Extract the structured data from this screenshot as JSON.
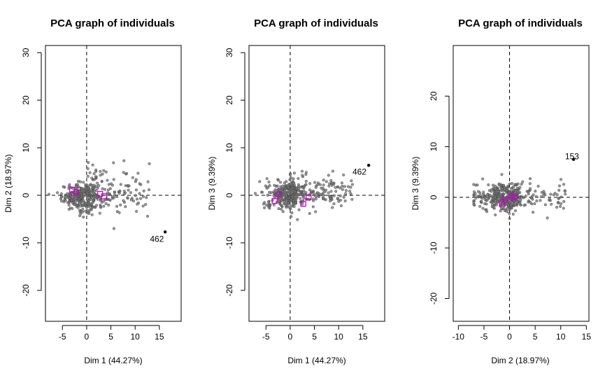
{
  "chart_data": [
    {
      "type": "scatter",
      "title": "PCA graph of individuals",
      "xlabel": "Dim 1 (44.27%)",
      "ylabel": "Dim 2 (18.97%)",
      "xlim": [
        -8.5,
        19.5
      ],
      "ylim": [
        -26.5,
        31.5
      ],
      "xticks": [
        -5,
        0,
        5,
        10,
        15
      ],
      "yticks": [
        -20,
        -10,
        0,
        10,
        20,
        30
      ],
      "grid": false,
      "reference_lines": {
        "x": 0,
        "y": 0,
        "style": "dashed"
      },
      "cloud": {
        "center": [
          -1.5,
          -0.3
        ],
        "sd": [
          1.8,
          1.4
        ],
        "count": 220,
        "color": "#555555"
      },
      "tail": {
        "x_range": [
          0,
          13
        ],
        "y_range": [
          -6,
          13
        ],
        "count": 170,
        "color": "#555555"
      },
      "labeled_points": [
        {
          "label": "462",
          "x": 16.2,
          "y": -7.7,
          "label_x": 14.5,
          "label_y": -9.2
        }
      ],
      "category_markers": {
        "color": "#cc00cc",
        "points": [
          [
            -3.0,
            1.2
          ],
          [
            -2.2,
            0.6
          ],
          [
            2.8,
            0.3
          ],
          [
            3.6,
            -0.2
          ]
        ]
      }
    },
    {
      "type": "scatter",
      "title": "PCA graph of individuals",
      "xlabel": "Dim 1 (44.27%)",
      "ylabel": "Dim 3 (9.39%)",
      "xlim": [
        -8.5,
        19.5
      ],
      "ylim": [
        -26.5,
        31.5
      ],
      "xticks": [
        -5,
        0,
        5,
        10,
        15
      ],
      "yticks": [
        -20,
        -10,
        0,
        10,
        20,
        30
      ],
      "grid": false,
      "reference_lines": {
        "x": 0,
        "y": 0,
        "style": "dashed"
      },
      "cloud": {
        "center": [
          -1.0,
          0.2
        ],
        "sd": [
          2.0,
          1.5
        ],
        "count": 240,
        "color": "#555555"
      },
      "tail": {
        "x_range": [
          0,
          13
        ],
        "y_range": [
          -3.5,
          10
        ],
        "count": 160,
        "color": "#555555"
      },
      "labeled_points": [
        {
          "label": "462",
          "x": 16.2,
          "y": 6.3,
          "label_x": 14.3,
          "label_y": 4.9
        }
      ],
      "category_markers": {
        "color": "#cc00cc",
        "points": [
          [
            -3.2,
            -1.2
          ],
          [
            -2.5,
            0.2
          ],
          [
            2.7,
            -1.8
          ],
          [
            3.8,
            -0.4
          ]
        ]
      }
    },
    {
      "type": "scatter",
      "title": "PCA graph of individuals",
      "xlabel": "Dim 2 (18.97%)",
      "ylabel": "Dim 3 (9.39%)",
      "xlim": [
        -11,
        15.5
      ],
      "ylim": [
        -24.5,
        30
      ],
      "xticks": [
        -10,
        -5,
        0,
        5,
        10,
        15
      ],
      "yticks": [
        -20,
        -10,
        0,
        10,
        20
      ],
      "grid": false,
      "reference_lines": {
        "x": 0,
        "y": 0,
        "style": "dashed"
      },
      "cloud": {
        "center": [
          -0.5,
          0.0
        ],
        "sd": [
          1.9,
          1.3
        ],
        "count": 260,
        "color": "#555555"
      },
      "tail": {
        "x_range": [
          -7,
          11
        ],
        "y_range": [
          -5,
          7
        ],
        "count": 140,
        "color": "#555555"
      },
      "labeled_points": [
        {
          "label": "153",
          "x": 12.5,
          "y": 7.5,
          "label_x": 12.2,
          "label_y": 8.1
        }
      ],
      "category_markers": {
        "color": "#cc00cc",
        "points": [
          [
            -1.5,
            -1.3
          ],
          [
            -0.8,
            -0.5
          ],
          [
            0.3,
            0.2
          ],
          [
            1.0,
            0.0
          ]
        ]
      }
    }
  ]
}
